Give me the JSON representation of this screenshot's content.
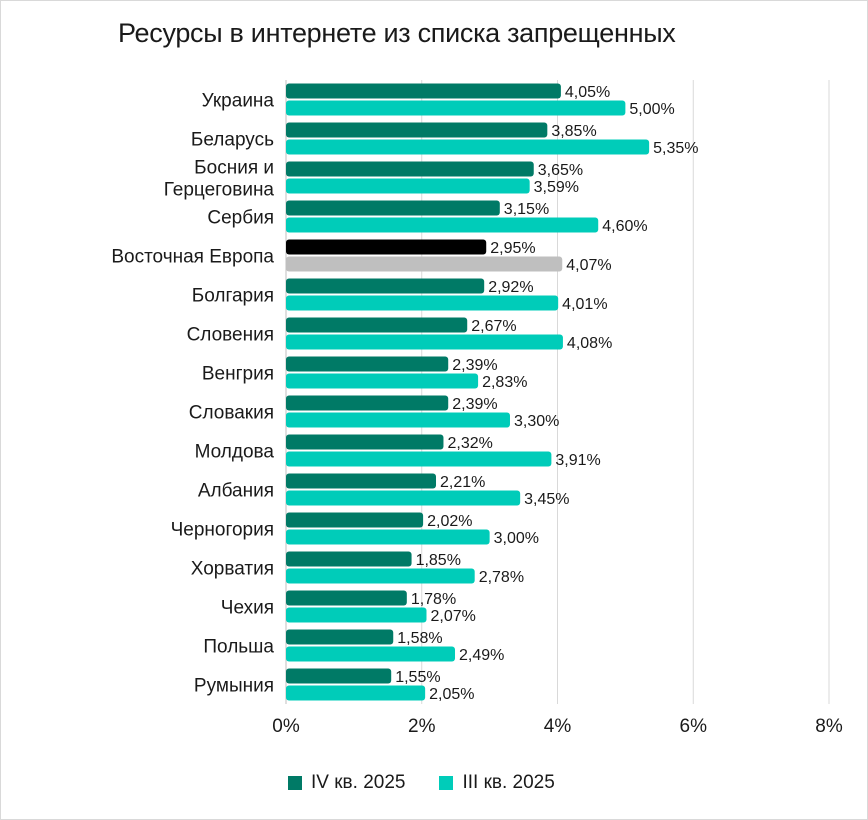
{
  "chart_data": {
    "type": "bar",
    "orientation": "horizontal",
    "title": "Ресурсы в интернете из списка запрещенных",
    "xlabel": "",
    "ylabel": "",
    "xlim": [
      0,
      8
    ],
    "x_ticks": [
      "0%",
      "2%",
      "4%",
      "6%",
      "8%"
    ],
    "grid": true,
    "legend_position": "bottom",
    "categories": [
      [
        "Украина"
      ],
      [
        "Беларусь"
      ],
      [
        "Босния и",
        "Герцеговина"
      ],
      [
        "Сербия"
      ],
      [
        "Восточная Европа"
      ],
      [
        "Болгария"
      ],
      [
        "Словения"
      ],
      [
        "Венгрия"
      ],
      [
        "Словакия"
      ],
      [
        "Молдова"
      ],
      [
        "Албания"
      ],
      [
        "Черногория"
      ],
      [
        "Хорватия"
      ],
      [
        "Чехия"
      ],
      [
        "Польша"
      ],
      [
        "Румыния"
      ]
    ],
    "series": [
      {
        "name": "IV кв. 2025",
        "color": "#007a66",
        "values": [
          4.05,
          3.85,
          3.65,
          3.15,
          2.95,
          2.92,
          2.67,
          2.39,
          2.39,
          2.32,
          2.21,
          2.02,
          1.85,
          1.78,
          1.58,
          1.55
        ],
        "labels": [
          "4,05%",
          "3,85%",
          "3,65%",
          "3,15%",
          "2,95%",
          "2,92%",
          "2,67%",
          "2,39%",
          "2,39%",
          "2,32%",
          "2,21%",
          "2,02%",
          "1,85%",
          "1,78%",
          "1,58%",
          "1,55%"
        ]
      },
      {
        "name": "III кв. 2025",
        "color": "#00ccb9",
        "values": [
          5.0,
          5.35,
          3.59,
          4.6,
          4.07,
          4.01,
          4.08,
          2.83,
          3.3,
          3.91,
          3.45,
          3.0,
          2.78,
          2.07,
          2.49,
          2.05
        ],
        "labels": [
          "5,00%",
          "5,35%",
          "3,59%",
          "4,60%",
          "4,07%",
          "4,01%",
          "4,08%",
          "2,83%",
          "3,30%",
          "3,91%",
          "3,45%",
          "3,00%",
          "2,78%",
          "2,07%",
          "2,49%",
          "2,05%"
        ]
      }
    ],
    "highlight": {
      "category_index": 4,
      "colors": [
        "#000000",
        "#bfbfbf"
      ]
    }
  }
}
